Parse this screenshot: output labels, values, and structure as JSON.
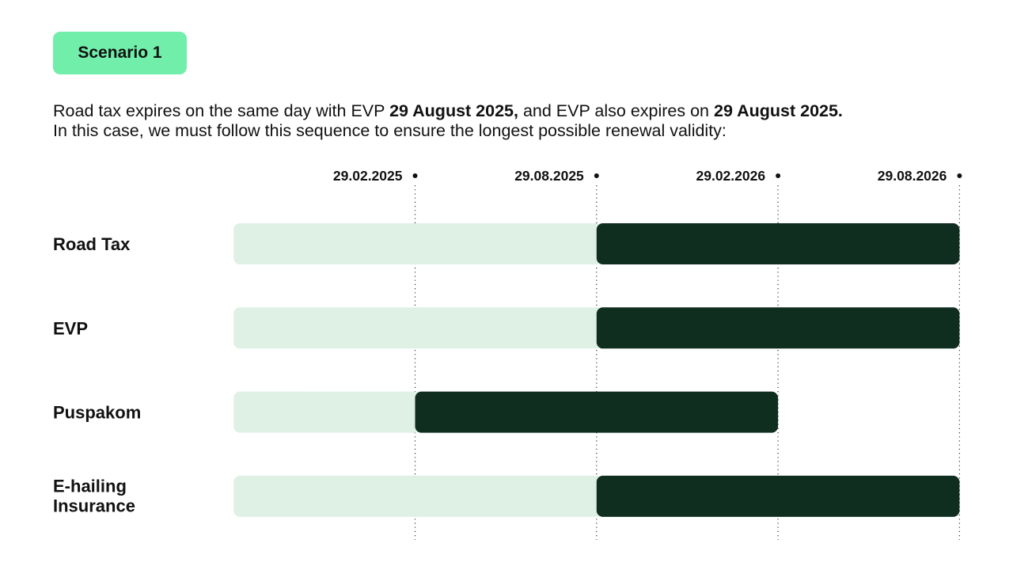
{
  "badge": "Scenario 1",
  "intro": {
    "line1": [
      "Road tax expires on the same day with EVP ",
      "29 August 2025,",
      " and EVP also expires on ",
      "29 August 2025."
    ],
    "line2": "In this case, we must follow this sequence to ensure the longest possible renewal validity:"
  },
  "timeline": {
    "dates": [
      "29.02.2025",
      "29.08.2025",
      "29.02.2026",
      "29.08.2026"
    ],
    "rows": [
      {
        "label": "Road Tax",
        "current_until": "29.08.2025",
        "renewed_until": "29.08.2026"
      },
      {
        "label": "EVP",
        "current_until": "29.08.2025",
        "renewed_until": "29.08.2026"
      },
      {
        "label": "Puspakom",
        "current_until": "29.02.2025",
        "renewed_until": "29.02.2026"
      },
      {
        "label": [
          "E-hailing",
          "Insurance"
        ],
        "current_until": "29.08.2025",
        "renewed_until": "29.08.2026"
      }
    ]
  }
}
